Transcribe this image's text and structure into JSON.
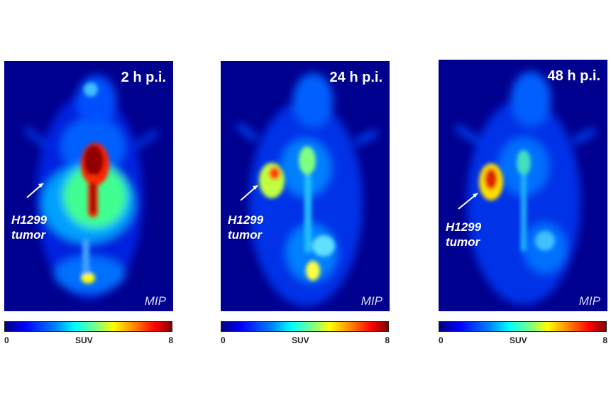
{
  "panels": [
    {
      "timepoint": "2 h p.i.",
      "tumor_label": "H1299\ntumor",
      "projection": "MIP",
      "colorbar": {
        "min": "0",
        "label": "SUV",
        "max": "8"
      }
    },
    {
      "timepoint": "24 h p.i.",
      "tumor_label": "H1299\ntumor",
      "projection": "MIP",
      "colorbar": {
        "min": "0",
        "label": "SUV",
        "max": "8"
      }
    },
    {
      "timepoint": "48 h p.i.",
      "tumor_label": "H1299\ntumor",
      "projection": "MIP",
      "colorbar": {
        "min": "0",
        "label": "SUV",
        "max": "8"
      }
    }
  ],
  "colors": {
    "background": "#00008f",
    "colormap": "jet"
  }
}
